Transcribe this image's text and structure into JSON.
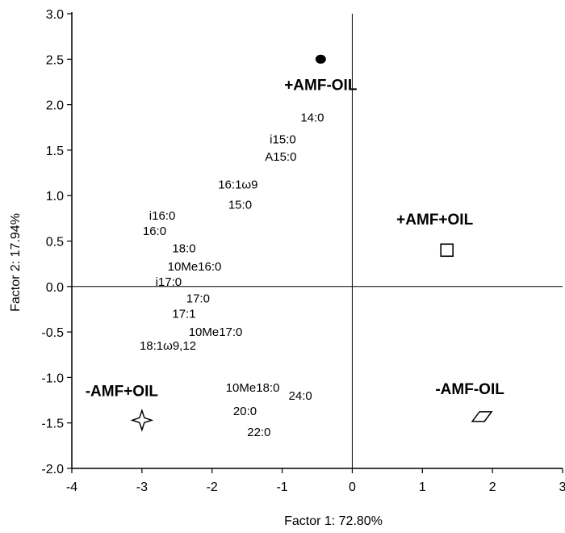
{
  "chart_data": {
    "type": "scatter",
    "title": "",
    "xlabel": "Factor 1: 72.80%",
    "ylabel": "Factor 2: 17.94%",
    "xlim": [
      -4,
      3
    ],
    "ylim": [
      -2.0,
      3.0
    ],
    "x_ticks": [
      "-4",
      "-3",
      "-2",
      "-1",
      "0",
      "1",
      "2",
      "3"
    ],
    "y_ticks": [
      "3.0",
      "2.5",
      "2.0",
      "1.5",
      "1.0",
      "0.5",
      "0.0",
      "-0.5",
      "-1.0",
      "-1.5",
      "-2.0"
    ],
    "grid": false,
    "reference_lines": {
      "x": 0,
      "y": 0
    },
    "groups": [
      {
        "label": "+AMF-OIL",
        "marker": "filled-circle",
        "x": -0.45,
        "y": 2.5
      },
      {
        "label": "+AMF+OIL",
        "marker": "open-square",
        "x": 1.35,
        "y": 0.4
      },
      {
        "label": "-AMF+OIL",
        "marker": "four-point-star",
        "x": -3.0,
        "y": -1.47
      },
      {
        "label": "-AMF-OIL",
        "marker": "open-parallelogram",
        "x": 1.85,
        "y": -1.43
      }
    ],
    "variables": [
      {
        "label": "14:0",
        "x": -0.57,
        "y": 1.86
      },
      {
        "label": "i15:0",
        "x": -0.99,
        "y": 1.62
      },
      {
        "label": "A15:0",
        "x": -1.02,
        "y": 1.43
      },
      {
        "label": "16:1ω9",
        "x": -1.63,
        "y": 1.12
      },
      {
        "label": "15:0",
        "x": -1.6,
        "y": 0.9
      },
      {
        "label": "i16:0",
        "x": -2.71,
        "y": 0.78
      },
      {
        "label": "16:0",
        "x": -2.82,
        "y": 0.61
      },
      {
        "label": "18:0",
        "x": -2.4,
        "y": 0.42
      },
      {
        "label": "10Me16:0",
        "x": -2.25,
        "y": 0.22
      },
      {
        "label": "i17:0",
        "x": -2.62,
        "y": 0.05
      },
      {
        "label": "17:0",
        "x": -2.2,
        "y": -0.13
      },
      {
        "label": "17:1",
        "x": -2.4,
        "y": -0.3
      },
      {
        "label": "10Me17:0",
        "x": -1.95,
        "y": -0.5
      },
      {
        "label": "18:1ω9,12",
        "x": -2.63,
        "y": -0.65
      },
      {
        "label": "10Me18:0",
        "x": -1.42,
        "y": -1.11
      },
      {
        "label": "24:0",
        "x": -0.74,
        "y": -1.2
      },
      {
        "label": "20:0",
        "x": -1.53,
        "y": -1.37
      },
      {
        "label": "22:0",
        "x": -1.33,
        "y": -1.6
      }
    ]
  }
}
